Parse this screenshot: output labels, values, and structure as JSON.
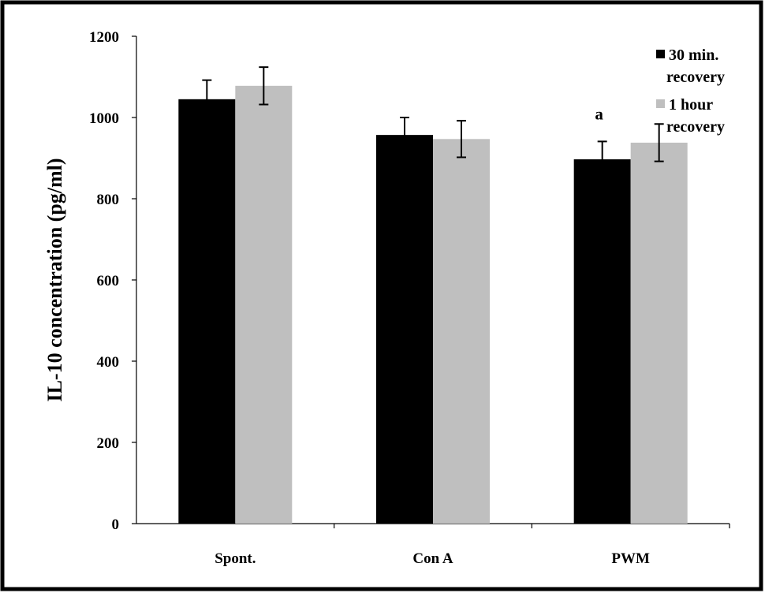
{
  "chart_data": {
    "type": "bar",
    "title": "",
    "xlabel": "",
    "ylabel": "IL-10 concentration (pg/ml)",
    "ylim": [
      0,
      1200
    ],
    "yticks": [
      0,
      200,
      400,
      600,
      800,
      1000,
      1200
    ],
    "grid": false,
    "legend_position": "top-right",
    "categories": [
      "Spont.",
      "Con A",
      "PWM"
    ],
    "series": [
      {
        "name_lines": [
          "30 min.",
          "recovery"
        ],
        "color": "#000000",
        "values": [
          1045,
          957,
          897
        ],
        "errors": [
          47,
          43,
          44
        ]
      },
      {
        "name_lines": [
          "1 hour",
          "recovery"
        ],
        "color": "#bfbfbf",
        "values": [
          1078,
          947,
          938
        ],
        "errors": [
          46,
          45,
          46
        ]
      }
    ],
    "annotations": [
      {
        "text": "a",
        "category": "PWM",
        "series_index": 0
      }
    ]
  }
}
